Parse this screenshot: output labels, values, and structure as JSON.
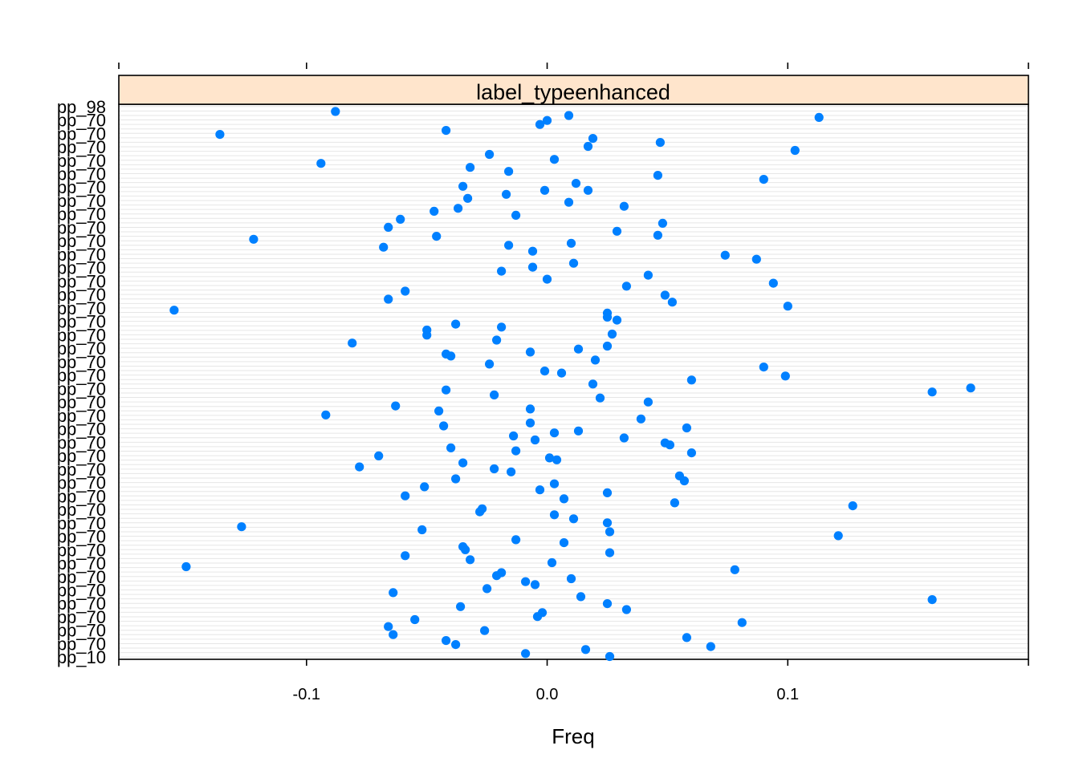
{
  "chart_data": {
    "type": "scatter",
    "panel_title": "label_typeenhanced",
    "xlabel": "Freq",
    "xlim": [
      -0.178,
      0.2
    ],
    "x_ticks": [
      -0.1,
      0.0,
      0.1
    ],
    "x_tick_labels": [
      "-0.1",
      "0.0",
      "0.1"
    ],
    "grid": true,
    "colors": {
      "point": "#0080ff",
      "strip": "#ffe5cc",
      "grid": "#e6e6e6"
    },
    "y_axis_note": "overlapping row labels pp_1 ... pp_124 (unreadable)",
    "y_label_samples": [
      "pp_98",
      "pp_70",
      "pp_10"
    ],
    "x": [
      -0.088,
      0.009,
      -0.003,
      0.0,
      0.113,
      -0.136,
      -0.042,
      0.019,
      0.017,
      0.047,
      0.103,
      -0.024,
      0.003,
      -0.094,
      -0.032,
      -0.016,
      0.046,
      0.09,
      -0.035,
      0.012,
      0.017,
      -0.017,
      -0.001,
      -0.033,
      0.009,
      0.032,
      -0.047,
      -0.037,
      -0.013,
      -0.061,
      0.048,
      -0.066,
      0.029,
      0.046,
      -0.122,
      -0.046,
      0.01,
      -0.068,
      -0.016,
      -0.006,
      0.074,
      0.087,
      0.011,
      -0.006,
      -0.019,
      0.042,
      0.0,
      0.094,
      0.033,
      -0.059,
      0.049,
      -0.066,
      0.052,
      0.1,
      -0.155,
      0.025,
      0.025,
      0.029,
      -0.038,
      -0.019,
      -0.05,
      0.027,
      -0.05,
      -0.021,
      -0.081,
      0.025,
      0.013,
      -0.007,
      -0.04,
      -0.042,
      0.02,
      -0.024,
      0.09,
      -0.001,
      0.006,
      0.099,
      0.06,
      0.019,
      0.176,
      -0.042,
      0.16,
      -0.022,
      0.022,
      0.042,
      -0.063,
      -0.045,
      -0.007,
      -0.092,
      0.039,
      -0.007,
      -0.043,
      0.058,
      0.013,
      0.003,
      -0.014,
      0.032,
      -0.005,
      0.049,
      0.051,
      -0.04,
      -0.013,
      0.06,
      -0.07,
      0.001,
      0.004,
      -0.035,
      -0.078,
      -0.022,
      -0.015,
      0.055,
      -0.038,
      0.057,
      0.003,
      -0.051,
      -0.003,
      0.025,
      -0.059,
      0.007,
      0.053,
      0.127,
      -0.027,
      -0.028,
      0.003,
      0.011,
      0.025,
      -0.127,
      -0.052,
      0.026,
      0.121,
      -0.013,
      0.007,
      -0.035,
      -0.034,
      0.026,
      -0.059,
      -0.032,
      0.002,
      -0.15,
      0.078,
      -0.019,
      -0.021,
      0.01,
      -0.009,
      -0.005,
      -0.025,
      -0.064,
      0.014,
      0.16,
      0.025,
      -0.036,
      0.033,
      -0.002,
      -0.004,
      -0.055,
      0.081,
      -0.066,
      -0.026,
      -0.064,
      0.058,
      -0.042,
      -0.038,
      0.068,
      0.016,
      -0.009,
      0.026
    ],
    "row_from_top": [
      0.4,
      0.8,
      1.7,
      1.3,
      1.0,
      2.7,
      2.3,
      3.1,
      3.9,
      3.5,
      4.3,
      4.7,
      5.2,
      5.6,
      6.0,
      6.4,
      6.8,
      7.2,
      7.9,
      7.6,
      8.3,
      8.7,
      8.3,
      9.1,
      9.5,
      9.9,
      10.4,
      10.1,
      10.8,
      11.2,
      11.6,
      12.0,
      12.4,
      12.8,
      13.2,
      12.9,
      13.6,
      14.0,
      13.8,
      14.4,
      14.8,
      15.2,
      15.6,
      16.0,
      16.4,
      16.8,
      17.2,
      17.6,
      17.9,
      18.4,
      18.8,
      19.2,
      19.5,
      19.9,
      20.3,
      20.6,
      21.0,
      21.3,
      21.7,
      22.0,
      22.3,
      22.7,
      22.8,
      23.3,
      23.6,
      23.9,
      24.2,
      24.5,
      24.9,
      24.7,
      25.3,
      25.7,
      26.0,
      26.4,
      26.6,
      26.9,
      27.3,
      27.7,
      28.1,
      28.3,
      28.5,
      28.8,
      29.1,
      29.5,
      29.9,
      30.4,
      30.2,
      30.8,
      31.2,
      31.6,
      31.9,
      32.1,
      32.4,
      32.6,
      32.9,
      33.1,
      33.3,
      33.6,
      33.8,
      34.1,
      34.4,
      34.6,
      34.9,
      35.1,
      35.3,
      35.6,
      36.0,
      36.2,
      36.5,
      36.9,
      37.2,
      37.4,
      37.7,
      38.0,
      38.3,
      38.6,
      38.9,
      39.2,
      39.6,
      39.9,
      40.2,
      40.5,
      40.8,
      41.2,
      41.6,
      42.0,
      42.3,
      42.5,
      42.9,
      43.3,
      43.6,
      44.0,
      44.3,
      44.6,
      44.9,
      45.3,
      45.6,
      46.0,
      46.3,
      46.6,
      46.9,
      47.2,
      47.5,
      47.8,
      48.2,
      48.6,
      49.0,
      49.3,
      49.7,
      50.0,
      50.3,
      50.6,
      51.0,
      51.3,
      51.6,
      52.0,
      52.4,
      52.8,
      53.1,
      53.4,
      53.8,
      54.0,
      54.3,
      54.7,
      55.0
    ]
  }
}
